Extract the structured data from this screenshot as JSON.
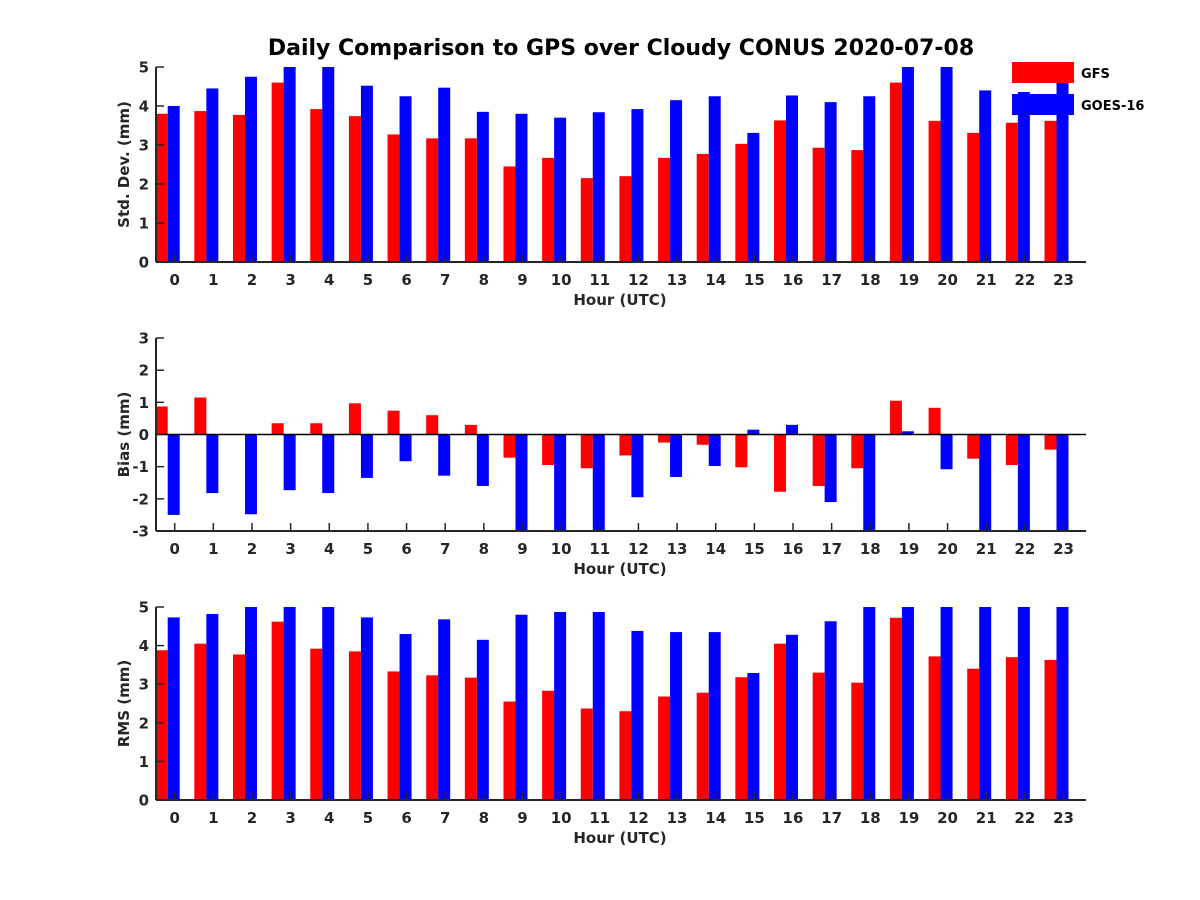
{
  "chart_data": [
    {
      "type": "bar",
      "title": "Daily Comparison to GPS over Cloudy CONUS 2020-07-08",
      "xlabel": "Hour (UTC)",
      "ylabel": "Std. Dev. (mm)",
      "ylim": [
        0,
        5
      ],
      "yticks": [
        0,
        1,
        2,
        3,
        4,
        5
      ],
      "categories": [
        "0",
        "1",
        "2",
        "3",
        "4",
        "5",
        "6",
        "7",
        "8",
        "9",
        "10",
        "11",
        "12",
        "13",
        "14",
        "15",
        "16",
        "17",
        "18",
        "19",
        "20",
        "21",
        "22",
        "23"
      ],
      "series": [
        {
          "name": "GFS",
          "color": "#ff0000",
          "values": [
            3.8,
            3.87,
            3.77,
            4.6,
            3.92,
            3.74,
            3.27,
            3.17,
            3.17,
            2.45,
            2.67,
            2.15,
            2.2,
            2.67,
            2.77,
            3.03,
            3.63,
            2.93,
            2.87,
            4.6,
            3.62,
            3.31,
            3.57,
            3.62
          ]
        },
        {
          "name": "GOES-16",
          "color": "#0000ff",
          "values": [
            4.0,
            4.45,
            4.75,
            5.0,
            5.0,
            4.52,
            4.25,
            4.47,
            3.85,
            3.8,
            3.7,
            3.84,
            3.92,
            4.15,
            4.25,
            3.31,
            4.27,
            4.1,
            4.25,
            5.0,
            5.0,
            4.4,
            4.36,
            4.6
          ]
        }
      ],
      "legend": {
        "position": "top-right"
      }
    },
    {
      "type": "bar",
      "xlabel": "Hour (UTC)",
      "ylabel": "Bias (mm)",
      "ylim": [
        -3,
        3
      ],
      "yticks": [
        -3,
        -2,
        -1,
        0,
        1,
        2,
        3
      ],
      "categories": [
        "0",
        "1",
        "2",
        "3",
        "4",
        "5",
        "6",
        "7",
        "8",
        "9",
        "10",
        "11",
        "12",
        "13",
        "14",
        "15",
        "16",
        "17",
        "18",
        "19",
        "20",
        "21",
        "22",
        "23"
      ],
      "series": [
        {
          "name": "GFS",
          "color": "#ff0000",
          "values": [
            0.87,
            1.15,
            0.0,
            0.35,
            0.35,
            0.97,
            0.74,
            0.6,
            0.3,
            -0.72,
            -0.95,
            -1.05,
            -0.65,
            -0.25,
            -0.32,
            -1.02,
            -1.78,
            -1.6,
            -1.05,
            1.05,
            0.83,
            -0.75,
            -0.95,
            -0.47
          ]
        },
        {
          "name": "GOES-16",
          "color": "#0000ff",
          "values": [
            -2.5,
            -1.82,
            -2.48,
            -1.73,
            -1.82,
            -1.35,
            -0.83,
            -1.28,
            -1.6,
            -3.0,
            -3.0,
            -3.0,
            -1.95,
            -1.32,
            -0.98,
            0.15,
            0.3,
            -2.1,
            -3.0,
            0.1,
            -1.08,
            -3.0,
            -3.0,
            -3.0
          ]
        }
      ]
    },
    {
      "type": "bar",
      "xlabel": "Hour (UTC)",
      "ylabel": "RMS (mm)",
      "ylim": [
        0,
        5
      ],
      "yticks": [
        0,
        1,
        2,
        3,
        4,
        5
      ],
      "categories": [
        "0",
        "1",
        "2",
        "3",
        "4",
        "5",
        "6",
        "7",
        "8",
        "9",
        "10",
        "11",
        "12",
        "13",
        "14",
        "15",
        "16",
        "17",
        "18",
        "19",
        "20",
        "21",
        "22",
        "23"
      ],
      "series": [
        {
          "name": "GFS",
          "color": "#ff0000",
          "values": [
            3.88,
            4.05,
            3.77,
            4.62,
            3.92,
            3.85,
            3.33,
            3.23,
            3.17,
            2.55,
            2.83,
            2.37,
            2.3,
            2.68,
            2.78,
            3.18,
            4.05,
            3.3,
            3.04,
            4.72,
            3.72,
            3.4,
            3.7,
            3.63
          ]
        },
        {
          "name": "GOES-16",
          "color": "#0000ff",
          "values": [
            4.73,
            4.82,
            5.0,
            5.0,
            5.0,
            4.73,
            4.3,
            4.68,
            4.15,
            4.8,
            4.87,
            4.87,
            4.38,
            4.35,
            4.35,
            3.29,
            4.28,
            4.63,
            5.0,
            5.0,
            5.0,
            5.0,
            5.0,
            5.0
          ]
        }
      ]
    }
  ]
}
